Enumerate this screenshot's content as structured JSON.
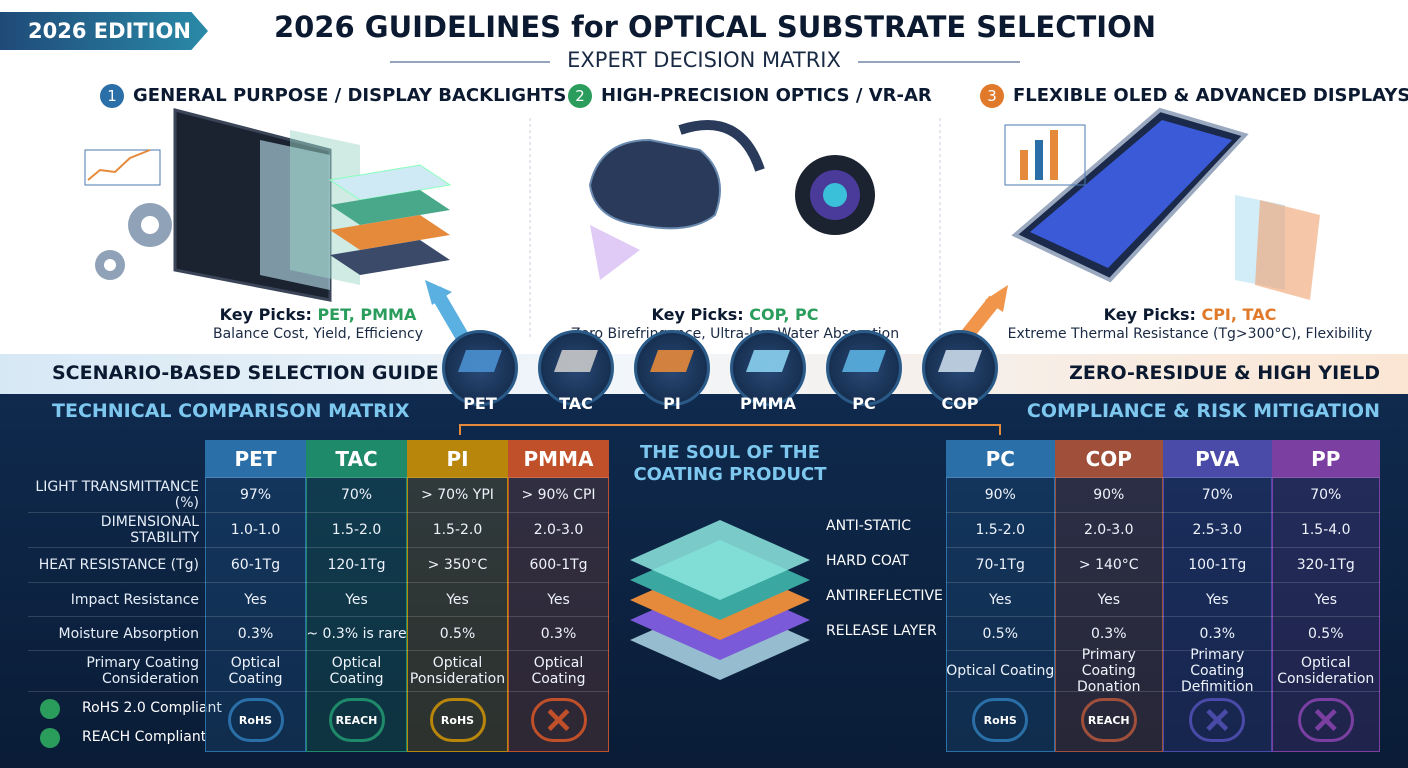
{
  "header": {
    "badge": "2026 EDITION",
    "title": "2026 GUIDELINES for OPTICAL SUBSTRATE SELECTION",
    "subtitle": "EXPERT DECISION MATRIX"
  },
  "scenarios": [
    {
      "number": "1",
      "title": "GENERAL PURPOSE / DISPLAY BACKLIGHTS",
      "picks_label": "Key Picks:",
      "picks": "PET, PMMA",
      "note": "Balance Cost, Yield, Efficiency",
      "color": "#2a9d5c",
      "badge_color": "#2a6fa8"
    },
    {
      "number": "2",
      "title": "HIGH-PRECISION OPTICS / VR-AR",
      "picks_label": "Key Picks:",
      "picks": "COP, PC",
      "note": "Zero Birefringence, Ultra-low Water Absorption",
      "color": "#2a9d5c",
      "badge_color": "#2a9d5c"
    },
    {
      "number": "3",
      "title": "FLEXIBLE OLED & ADVANCED DISPLAYS",
      "picks_label": "Key Picks:",
      "picks": "CPI, TAC",
      "note": "Extreme Thermal Resistance (Tg>300°C), Flexibility",
      "color": "#e07a2a",
      "badge_color": "#e07a2a"
    }
  ],
  "banner": {
    "left": "SCENARIO-BASED SELECTION GUIDE",
    "right": "ZERO-RESIDUE & HIGH YIELD"
  },
  "materials": [
    "PET",
    "TAC",
    "PI",
    "PMMA",
    "PC",
    "COP"
  ],
  "matrix": {
    "title": "TECHNICAL COMPARISON MATRIX",
    "row_labels": [
      "LIGHT TRANSMITTANCE (%)",
      "DIMENSIONAL STABILITY",
      "HEAT RESISTANCE (Tg)",
      "Impact Resistance",
      "Moisture Absorption",
      "Primary Coating Consideration"
    ],
    "compliance": [
      "RoHS 2.0 Compliant",
      "REACH Compliant"
    ],
    "columns": [
      "PET",
      "TAC",
      "PI",
      "PMMA"
    ],
    "colors": [
      "#2a6fa8",
      "#1f8a6a",
      "#b8860b",
      "#c0502a"
    ],
    "rows": [
      [
        "97%",
        "70%",
        "> 70% YPI",
        "> 90% CPI"
      ],
      [
        "1.0-1.0",
        "1.5-2.0",
        "1.5-2.0",
        "2.0-3.0"
      ],
      [
        "60-1Tg",
        "120-1Tg",
        "> 350°C",
        "600-1Tg"
      ],
      [
        "Yes",
        "Yes",
        "Yes",
        "Yes"
      ],
      [
        "0.3%",
        "~ 0.3% is rare",
        "0.5%",
        "0.3%"
      ],
      [
        "Optical Coating",
        "Optical Coating",
        "Optical Ponsideration",
        "Optical Coating"
      ]
    ],
    "badges": [
      "RoHS",
      "REACH",
      "RoHS",
      null
    ]
  },
  "compliance": {
    "title": "COMPLIANCE & RISK MITIGATION",
    "columns": [
      "PC",
      "COP",
      "PVA",
      "PP"
    ],
    "colors": [
      "#2a6fa8",
      "#a0503a",
      "#4a4aa8",
      "#7a3fa0"
    ],
    "rows": [
      [
        "90%",
        "90%",
        "70%",
        "70%"
      ],
      [
        "1.5-2.0",
        "2.0-3.0",
        "2.5-3.0",
        "1.5-4.0"
      ],
      [
        "70-1Tg",
        "> 140°C",
        "100-1Tg",
        "320-1Tg"
      ],
      [
        "Yes",
        "Yes",
        "Yes",
        "Yes"
      ],
      [
        "0.5%",
        "0.3%",
        "0.3%",
        "0.5%"
      ],
      [
        "Optical Coating",
        "Primary Coating Donation",
        "Primary Coating Defimition",
        "Optical Consideration"
      ]
    ],
    "badges": [
      "RoHS",
      "REACH",
      null,
      null
    ]
  },
  "core": {
    "title": "THE SOUL OF THE COATING PRODUCT",
    "layers": [
      "ANTI-STATIC",
      "HARD COAT",
      "ANTIREFLECTIVE",
      "RELEASE LAYER"
    ]
  }
}
